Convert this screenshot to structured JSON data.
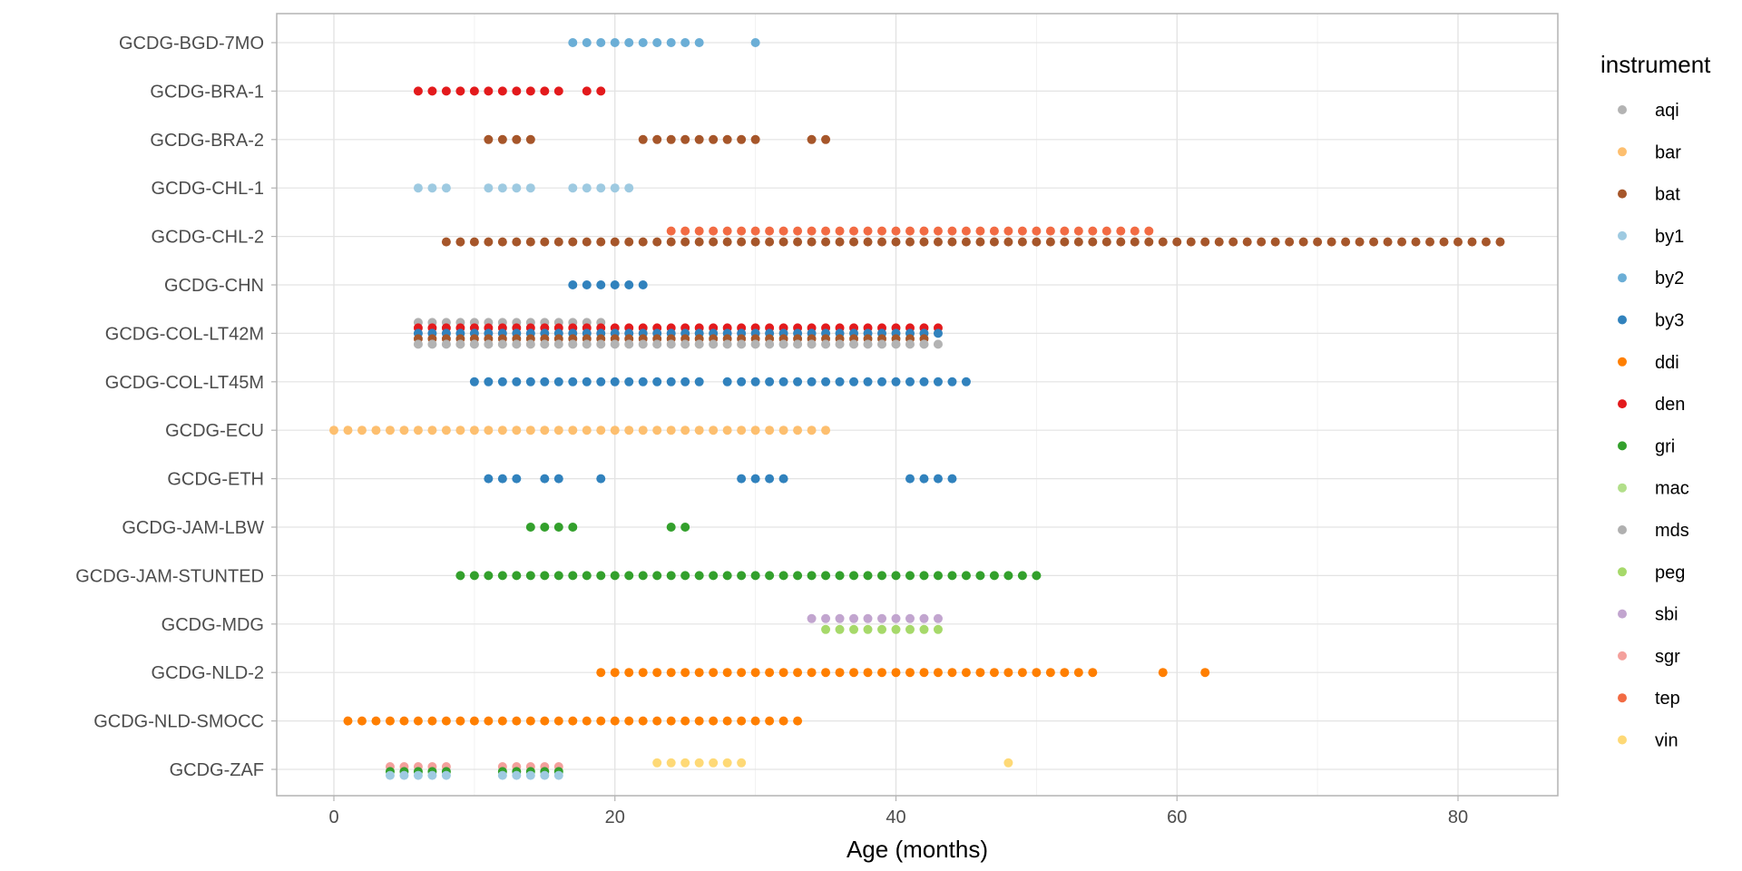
{
  "chart_data": {
    "type": "scatter",
    "title": "",
    "xlabel": "Age (months)",
    "ylabel": "",
    "xlim": [
      -6,
      87
    ],
    "x_ticks": [
      0,
      20,
      40,
      60,
      80
    ],
    "x_tick_labels": [
      "0",
      "20",
      "40",
      "60",
      "80"
    ],
    "grid": true,
    "legend_position": "right",
    "legend_title": "instrument",
    "categories": [
      "GCDG-BGD-7MO",
      "GCDG-BRA-1",
      "GCDG-BRA-2",
      "GCDG-CHL-1",
      "GCDG-CHL-2",
      "GCDG-CHN",
      "GCDG-COL-LT42M",
      "GCDG-COL-LT45M",
      "GCDG-ECU",
      "GCDG-ETH",
      "GCDG-JAM-LBW",
      "GCDG-JAM-STUNTED",
      "GCDG-MDG",
      "GCDG-NLD-2",
      "GCDG-NLD-SMOCC",
      "GCDG-ZAF"
    ],
    "instruments": [
      {
        "name": "aqi",
        "color": "#b3b3b3"
      },
      {
        "name": "bar",
        "color": "#fdbf6f"
      },
      {
        "name": "bat",
        "color": "#a6562a"
      },
      {
        "name": "by1",
        "color": "#9ecae1"
      },
      {
        "name": "by2",
        "color": "#6baed6"
      },
      {
        "name": "by3",
        "color": "#3182bd"
      },
      {
        "name": "ddi",
        "color": "#ff7f00"
      },
      {
        "name": "den",
        "color": "#e31a1c"
      },
      {
        "name": "gri",
        "color": "#33a02c"
      },
      {
        "name": "mac",
        "color": "#b2df8a"
      },
      {
        "name": "mds",
        "color": "#b0b0b0"
      },
      {
        "name": "peg",
        "color": "#a6d96a"
      },
      {
        "name": "sbi",
        "color": "#c2a5cf"
      },
      {
        "name": "sgr",
        "color": "#f4a09c"
      },
      {
        "name": "tep",
        "color": "#f26b43"
      },
      {
        "name": "vin",
        "color": "#fed976"
      }
    ],
    "series": [
      {
        "cohort": "GCDG-BGD-7MO",
        "instrument": "by2",
        "offset": 0,
        "x": [
          17,
          18,
          19,
          20,
          21,
          22,
          23,
          24,
          25,
          26,
          30
        ]
      },
      {
        "cohort": "GCDG-BRA-1",
        "instrument": "den",
        "offset": 0,
        "x": [
          6,
          7,
          8,
          9,
          10,
          11,
          12,
          13,
          14,
          15,
          16,
          18,
          19
        ]
      },
      {
        "cohort": "GCDG-BRA-2",
        "instrument": "bat",
        "offset": 0,
        "x": [
          11,
          12,
          13,
          14,
          22,
          23,
          24,
          25,
          26,
          27,
          28,
          29,
          30,
          34,
          35
        ]
      },
      {
        "cohort": "GCDG-CHL-1",
        "instrument": "by1",
        "offset": 0,
        "x": [
          6,
          7,
          8,
          11,
          12,
          13,
          14,
          17,
          18,
          19,
          20,
          21
        ]
      },
      {
        "cohort": "GCDG-CHL-2",
        "instrument": "tep",
        "offset": -1,
        "x": [
          24,
          25,
          26,
          27,
          28,
          29,
          30,
          31,
          32,
          33,
          34,
          35,
          36,
          37,
          38,
          39,
          40,
          41,
          42,
          43,
          44,
          45,
          46,
          47,
          48,
          49,
          50,
          51,
          52,
          53,
          54,
          55,
          56,
          57,
          58
        ]
      },
      {
        "cohort": "GCDG-CHL-2",
        "instrument": "bat",
        "offset": 1,
        "x": [
          8,
          9,
          10,
          11,
          12,
          13,
          14,
          15,
          16,
          17,
          18,
          19,
          20,
          21,
          22,
          23,
          24,
          25,
          26,
          27,
          28,
          29,
          30,
          31,
          32,
          33,
          34,
          35,
          36,
          37,
          38,
          39,
          40,
          41,
          42,
          43,
          44,
          45,
          46,
          47,
          48,
          49,
          50,
          51,
          52,
          53,
          54,
          55,
          56,
          57,
          58,
          59,
          60,
          61,
          62,
          63,
          64,
          65,
          66,
          67,
          68,
          69,
          70,
          71,
          72,
          73,
          74,
          75,
          76,
          77,
          78,
          79,
          80,
          81,
          82,
          83
        ]
      },
      {
        "cohort": "GCDG-CHN",
        "instrument": "by3",
        "offset": 0,
        "x": [
          17,
          18,
          19,
          20,
          21,
          22
        ]
      },
      {
        "cohort": "GCDG-COL-LT42M",
        "instrument": "mds",
        "offset": -2,
        "x": [
          6,
          7,
          8,
          9,
          10,
          11,
          12,
          13,
          14,
          15,
          16,
          17,
          18,
          19
        ]
      },
      {
        "cohort": "GCDG-COL-LT42M",
        "instrument": "den",
        "offset": -1,
        "x": [
          6,
          7,
          8,
          9,
          10,
          11,
          12,
          13,
          14,
          15,
          16,
          17,
          18,
          19,
          20,
          21,
          22,
          23,
          24,
          25,
          26,
          27,
          28,
          29,
          30,
          31,
          32,
          33,
          34,
          35,
          36,
          37,
          38,
          39,
          40,
          41,
          42,
          43
        ]
      },
      {
        "cohort": "GCDG-COL-LT42M",
        "instrument": "by3",
        "offset": 0,
        "x": [
          6,
          7,
          8,
          9,
          10,
          11,
          12,
          13,
          14,
          15,
          16,
          17,
          18,
          19,
          20,
          21,
          22,
          23,
          24,
          25,
          26,
          27,
          28,
          29,
          30,
          31,
          32,
          33,
          34,
          35,
          36,
          37,
          38,
          39,
          40,
          41,
          42,
          43
        ]
      },
      {
        "cohort": "GCDG-COL-LT42M",
        "instrument": "bat",
        "offset": 1,
        "x": [
          6,
          7,
          8,
          9,
          10,
          11,
          12,
          13,
          14,
          15,
          16,
          17,
          18,
          19,
          20,
          21,
          22,
          23,
          24,
          25,
          26,
          27,
          28,
          29,
          30,
          31,
          32,
          33,
          34,
          35,
          36,
          37,
          38,
          39,
          40,
          41,
          42
        ]
      },
      {
        "cohort": "GCDG-COL-LT42M",
        "instrument": "aqi",
        "offset": 2,
        "x": [
          6,
          7,
          8,
          9,
          10,
          11,
          12,
          13,
          14,
          15,
          16,
          17,
          18,
          19,
          20,
          21,
          22,
          23,
          24,
          25,
          26,
          27,
          28,
          29,
          30,
          31,
          32,
          33,
          34,
          35,
          36,
          37,
          38,
          39,
          40,
          41,
          42,
          43
        ]
      },
      {
        "cohort": "GCDG-COL-LT45M",
        "instrument": "by3",
        "offset": 0,
        "x": [
          10,
          11,
          12,
          13,
          14,
          15,
          16,
          17,
          18,
          19,
          20,
          21,
          22,
          23,
          24,
          25,
          26,
          28,
          29,
          30,
          31,
          32,
          33,
          34,
          35,
          36,
          37,
          38,
          39,
          40,
          41,
          42,
          43,
          44,
          45
        ]
      },
      {
        "cohort": "GCDG-ECU",
        "instrument": "bar",
        "offset": 0,
        "x": [
          0,
          1,
          2,
          3,
          4,
          5,
          6,
          7,
          8,
          9,
          10,
          11,
          12,
          13,
          14,
          15,
          16,
          17,
          18,
          19,
          20,
          21,
          22,
          23,
          24,
          25,
          26,
          27,
          28,
          29,
          30,
          31,
          32,
          33,
          34,
          35
        ]
      },
      {
        "cohort": "GCDG-ETH",
        "instrument": "by3",
        "offset": 0,
        "x": [
          11,
          12,
          13,
          15,
          16,
          19,
          29,
          30,
          31,
          32,
          41,
          42,
          43,
          44
        ]
      },
      {
        "cohort": "GCDG-JAM-LBW",
        "instrument": "gri",
        "offset": 0,
        "x": [
          14,
          15,
          16,
          17,
          24,
          25
        ]
      },
      {
        "cohort": "GCDG-JAM-STUNTED",
        "instrument": "gri",
        "offset": 0,
        "x": [
          9,
          10,
          11,
          12,
          13,
          14,
          15,
          16,
          17,
          18,
          19,
          20,
          21,
          22,
          23,
          24,
          25,
          26,
          27,
          28,
          29,
          30,
          31,
          32,
          33,
          34,
          35,
          36,
          37,
          38,
          39,
          40,
          41,
          42,
          43,
          44,
          45,
          46,
          47,
          48,
          49,
          50
        ]
      },
      {
        "cohort": "GCDG-MDG",
        "instrument": "sbi",
        "offset": -1,
        "x": [
          34,
          35,
          36,
          37,
          38,
          39,
          40,
          41,
          42,
          43
        ]
      },
      {
        "cohort": "GCDG-MDG",
        "instrument": "peg",
        "offset": 1,
        "x": [
          35,
          36,
          37,
          38,
          39,
          40,
          41,
          42,
          43
        ]
      },
      {
        "cohort": "GCDG-NLD-2",
        "instrument": "ddi",
        "offset": 0,
        "x": [
          19,
          20,
          21,
          22,
          23,
          24,
          25,
          26,
          27,
          28,
          29,
          30,
          31,
          32,
          33,
          34,
          35,
          36,
          37,
          38,
          39,
          40,
          41,
          42,
          43,
          44,
          45,
          46,
          47,
          48,
          49,
          50,
          51,
          52,
          53,
          54,
          59,
          62
        ]
      },
      {
        "cohort": "GCDG-NLD-SMOCC",
        "instrument": "ddi",
        "offset": 0,
        "x": [
          1,
          2,
          3,
          4,
          5,
          6,
          7,
          8,
          9,
          10,
          11,
          12,
          13,
          14,
          15,
          16,
          17,
          18,
          19,
          20,
          21,
          22,
          23,
          24,
          25,
          26,
          27,
          28,
          29,
          30,
          31,
          32,
          33
        ]
      },
      {
        "cohort": "GCDG-ZAF",
        "instrument": "vin",
        "offset": -1.2,
        "x": [
          23,
          24,
          25,
          26,
          27,
          28,
          29,
          48
        ]
      },
      {
        "cohort": "GCDG-ZAF",
        "instrument": "sgr",
        "offset": -0.5,
        "x": [
          4,
          5,
          6,
          7,
          8,
          12,
          13,
          14,
          15,
          16
        ]
      },
      {
        "cohort": "GCDG-ZAF",
        "instrument": "gri",
        "offset": 0.4,
        "x": [
          4,
          5,
          6,
          7,
          8,
          12,
          13,
          14,
          15,
          16
        ]
      },
      {
        "cohort": "GCDG-ZAF",
        "instrument": "by1",
        "offset": 1.1,
        "x": [
          4,
          5,
          6,
          7,
          8,
          12,
          13,
          14,
          15,
          16
        ]
      }
    ]
  }
}
